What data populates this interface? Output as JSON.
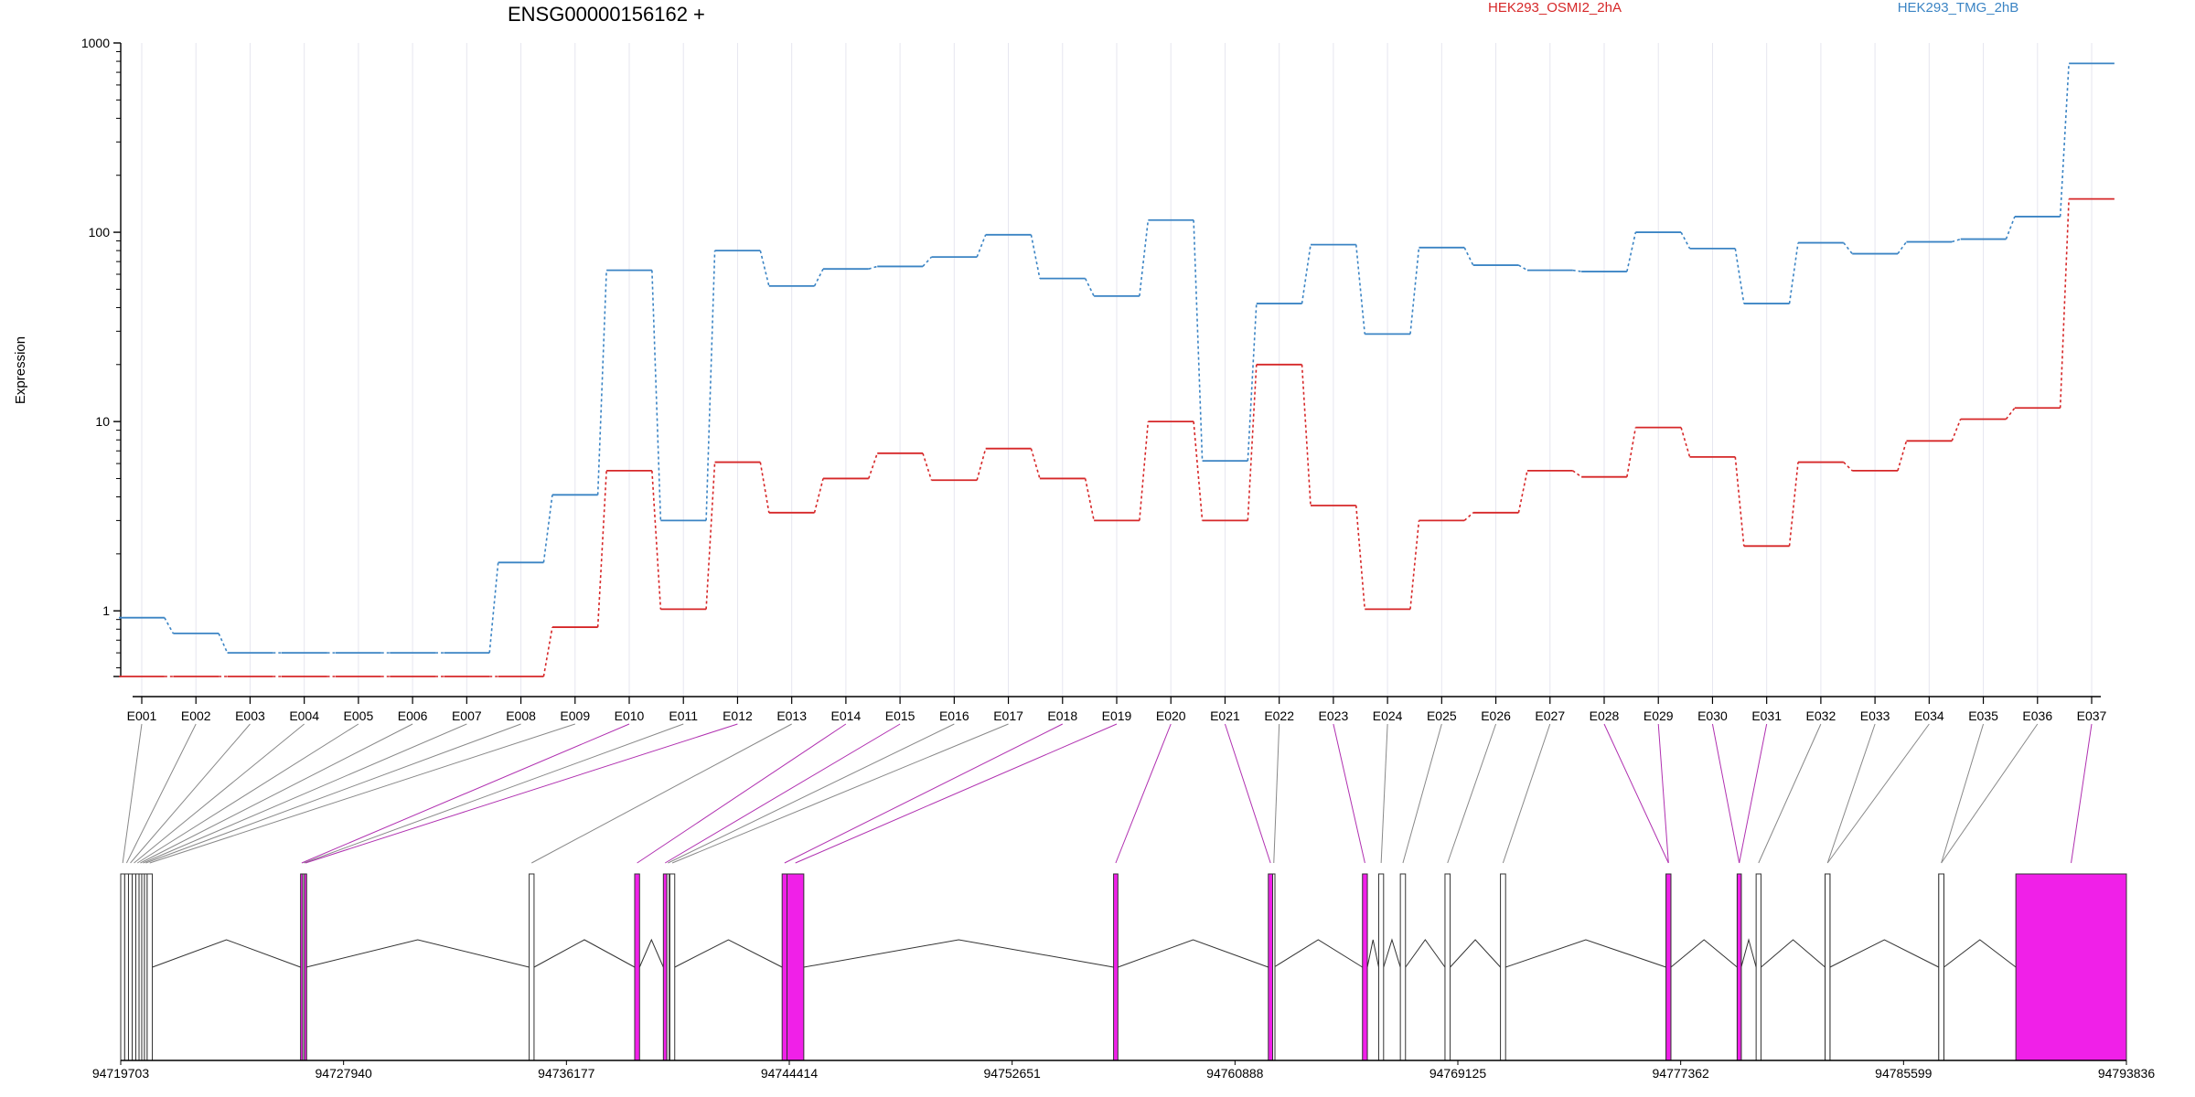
{
  "chart_data": {
    "type": "line",
    "title": "ENSG00000156162 +",
    "ylabel": "Expression",
    "y_scale": "log",
    "ylim": [
      0.45,
      1000
    ],
    "y_ticks": [
      {
        "value": 1,
        "label": "1"
      },
      {
        "value": 10,
        "label": "10"
      },
      {
        "value": 100,
        "label": "100"
      },
      {
        "value": 1000,
        "label": "1000"
      }
    ],
    "categories": [
      "E001",
      "E002",
      "E003",
      "E004",
      "E005",
      "E006",
      "E007",
      "E008",
      "E009",
      "E010",
      "E011",
      "E012",
      "E013",
      "E014",
      "E015",
      "E016",
      "E017",
      "E018",
      "E019",
      "E020",
      "E021",
      "E022",
      "E023",
      "E024",
      "E025",
      "E026",
      "E027",
      "E028",
      "E029",
      "E030",
      "E031",
      "E032",
      "E033",
      "E034",
      "E035",
      "E036",
      "E037"
    ],
    "series": [
      {
        "name": "HEK293_OSMI2_2hA",
        "color": "#d62728",
        "values": [
          0.45,
          0.45,
          0.45,
          0.45,
          0.45,
          0.45,
          0.45,
          0.45,
          0.82,
          5.5,
          1.02,
          6.1,
          3.3,
          5.0,
          6.8,
          4.9,
          7.2,
          5.0,
          3.0,
          10.0,
          3.0,
          20.0,
          3.6,
          1.02,
          3.0,
          3.3,
          5.5,
          5.1,
          9.3,
          6.5,
          2.2,
          6.1,
          5.5,
          7.9,
          10.3,
          11.8,
          150
        ]
      },
      {
        "name": "HEK293_TMG_2hB",
        "color": "#3b84c4",
        "values": [
          0.92,
          0.76,
          0.6,
          0.6,
          0.6,
          0.6,
          0.6,
          1.8,
          4.1,
          63,
          3.0,
          80,
          52,
          64,
          66,
          74,
          97,
          57,
          46,
          116,
          6.2,
          42,
          86,
          29,
          83,
          67,
          63,
          62,
          100,
          82,
          42,
          88,
          77,
          89,
          92,
          121,
          780
        ]
      }
    ],
    "gene_model": {
      "coordinate_ticks": [
        "94719703",
        "94727940",
        "94736177",
        "94744414",
        "94752651",
        "94760888",
        "94769125",
        "94777362",
        "94785599",
        "94793836"
      ],
      "genomic_range": [
        94719703,
        94793836
      ],
      "exon_color_highlight": "#f020e8",
      "exon_color_plain": "#ffffff",
      "exons": [
        {
          "id": "E001",
          "start": 94719703,
          "end": 94719850,
          "highlighted": false
        },
        {
          "id": "E002",
          "start": 94719850,
          "end": 94719990,
          "highlighted": false
        },
        {
          "id": "E003",
          "start": 94719990,
          "end": 94720130,
          "highlighted": false
        },
        {
          "id": "E004",
          "start": 94720130,
          "end": 94720260,
          "highlighted": false
        },
        {
          "id": "E005",
          "start": 94720260,
          "end": 94720380,
          "highlighted": false
        },
        {
          "id": "E006",
          "start": 94720380,
          "end": 94720480,
          "highlighted": false
        },
        {
          "id": "E007",
          "start": 94720480,
          "end": 94720580,
          "highlighted": false
        },
        {
          "id": "E008",
          "start": 94720580,
          "end": 94720680,
          "highlighted": false
        },
        {
          "id": "E009",
          "start": 94720680,
          "end": 94720870,
          "highlighted": false
        },
        {
          "id": "E010",
          "start": 94726350,
          "end": 94726430,
          "highlighted": true
        },
        {
          "id": "E011",
          "start": 94726430,
          "end": 94726490,
          "highlighted": false
        },
        {
          "id": "E012",
          "start": 94726490,
          "end": 94726560,
          "highlighted": true
        },
        {
          "id": "E013",
          "start": 94734800,
          "end": 94734980,
          "highlighted": false
        },
        {
          "id": "E014",
          "start": 94738700,
          "end": 94738880,
          "highlighted": true
        },
        {
          "id": "E015",
          "start": 94739760,
          "end": 94739890,
          "highlighted": true
        },
        {
          "id": "E016",
          "start": 94739890,
          "end": 94739960,
          "highlighted": false
        },
        {
          "id": "E017",
          "start": 94740000,
          "end": 94740180,
          "highlighted": false
        },
        {
          "id": "E018",
          "start": 94744150,
          "end": 94744330,
          "highlighted": true
        },
        {
          "id": "E019",
          "start": 94744330,
          "end": 94744950,
          "highlighted": true
        },
        {
          "id": "E020",
          "start": 94756400,
          "end": 94756560,
          "highlighted": true
        },
        {
          "id": "E021",
          "start": 94762120,
          "end": 94762280,
          "highlighted": true
        },
        {
          "id": "E022",
          "start": 94762280,
          "end": 94762330,
          "highlighted": false
        },
        {
          "id": "E023",
          "start": 94765600,
          "end": 94765780,
          "highlighted": true
        },
        {
          "id": "E024",
          "start": 94766200,
          "end": 94766380,
          "highlighted": false
        },
        {
          "id": "E025",
          "start": 94767000,
          "end": 94767190,
          "highlighted": false
        },
        {
          "id": "E026",
          "start": 94768650,
          "end": 94768840,
          "highlighted": false
        },
        {
          "id": "E027",
          "start": 94770700,
          "end": 94770890,
          "highlighted": false
        },
        {
          "id": "E028",
          "start": 94776820,
          "end": 94777000,
          "highlighted": true
        },
        {
          "id": "E029",
          "start": 94776820,
          "end": 94777000,
          "highlighted": true
        },
        {
          "id": "E030",
          "start": 94779450,
          "end": 94779600,
          "highlighted": true
        },
        {
          "id": "E031",
          "start": 94779450,
          "end": 94779600,
          "highlighted": true
        },
        {
          "id": "E032",
          "start": 94780150,
          "end": 94780330,
          "highlighted": false
        },
        {
          "id": "E033",
          "start": 94782700,
          "end": 94782880,
          "highlighted": false
        },
        {
          "id": "E034",
          "start": 94782700,
          "end": 94782880,
          "highlighted": false
        },
        {
          "id": "E035",
          "start": 94786900,
          "end": 94787090,
          "highlighted": false
        },
        {
          "id": "E036",
          "start": 94786900,
          "end": 94787090,
          "highlighted": false
        },
        {
          "id": "E037",
          "start": 94789750,
          "end": 94793836,
          "highlighted": true
        }
      ]
    }
  }
}
